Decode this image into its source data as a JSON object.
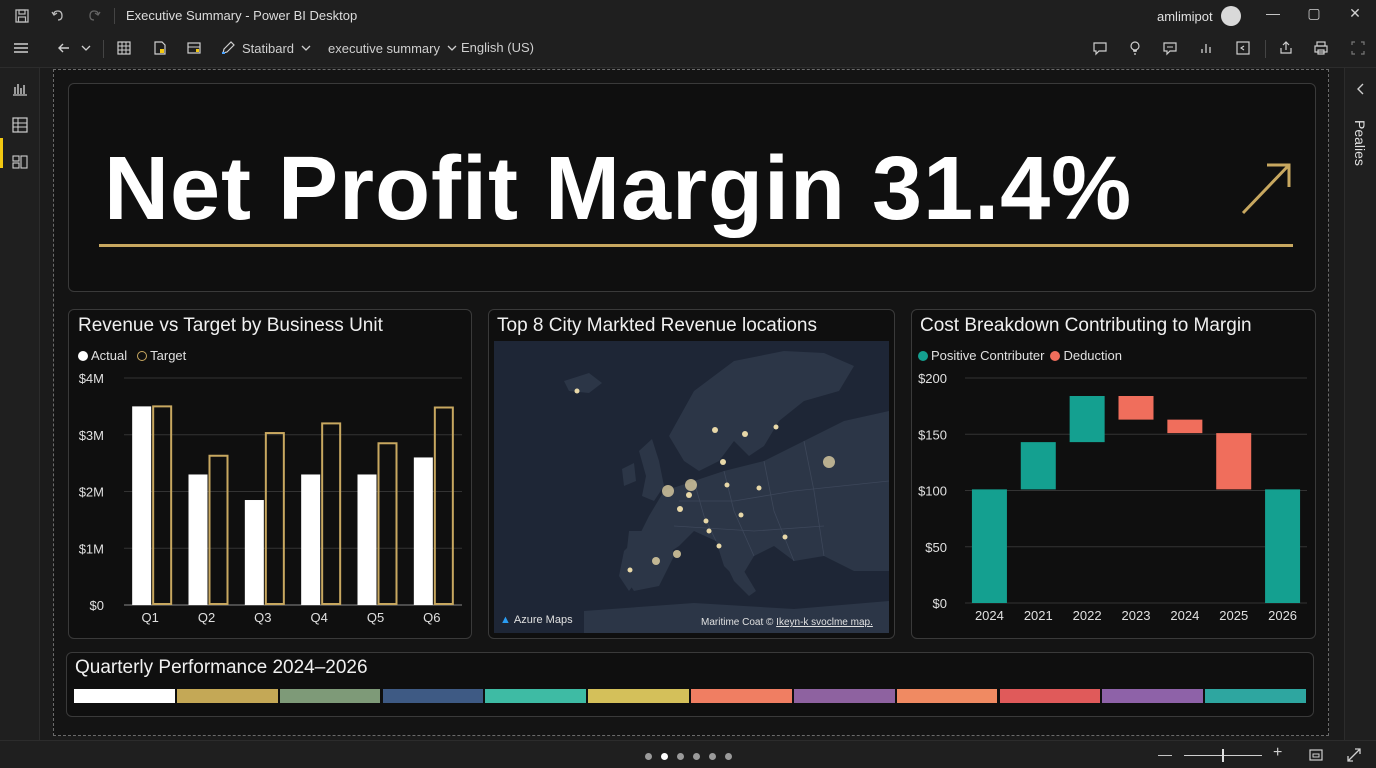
{
  "window": {
    "title": "Executive Summary - Power BI Desktop",
    "user": "amlimipot"
  },
  "toolbar": {
    "style_label": "Statibard",
    "page_label": "executive summary",
    "locale_label": "English (US)"
  },
  "right_pane": {
    "label": "Pealies"
  },
  "kpi": {
    "text": "Net Profit Margin 31.4%",
    "arrow_color": "#c8a860",
    "underline_color": "#c8a860"
  },
  "bar_chart": {
    "title": "Revenue vs Target by Business Unit",
    "legend": [
      "Actual",
      "Target"
    ],
    "chart_data": {
      "type": "bar",
      "categories": [
        "Q1",
        "Q2",
        "Q3",
        "Q4",
        "Q5",
        "Q6"
      ],
      "series": [
        {
          "name": "Actual",
          "values": [
            3.5,
            2.3,
            1.85,
            2.3,
            2.3,
            2.6
          ],
          "color": "#ffffff"
        },
        {
          "name": "Target",
          "values": [
            3.5,
            2.63,
            3.03,
            3.2,
            2.85,
            3.48
          ],
          "color": "#c8a860"
        }
      ],
      "ylim": [
        0,
        4
      ],
      "yticks": [
        "$0",
        "$1M",
        "$2M",
        "$3M",
        "$4M"
      ]
    }
  },
  "map": {
    "title": "Top 8 City Markted Revenue locations",
    "logo": "Azure Maps",
    "credit": "Maritime Coat ©",
    "credit_link": "Ikeyn-k svoclme map."
  },
  "waterfall": {
    "title": "Cost Breakdown Contributing to Margin",
    "legend": [
      "Positive Contributer",
      "Deduction"
    ],
    "chart_data": {
      "type": "bar",
      "categories": [
        "2024",
        "2021",
        "2022",
        "2023",
        "2024",
        "2025",
        "2026"
      ],
      "bars": [
        {
          "start": 0,
          "end": 101,
          "kind": "positive"
        },
        {
          "start": 101,
          "end": 143,
          "kind": "positive"
        },
        {
          "start": 143,
          "end": 184,
          "kind": "positive"
        },
        {
          "start": 184,
          "end": 163,
          "kind": "deduction"
        },
        {
          "start": 163,
          "end": 151,
          "kind": "deduction"
        },
        {
          "start": 151,
          "end": 101,
          "kind": "deduction"
        },
        {
          "start": 0,
          "end": 101,
          "kind": "positive"
        }
      ],
      "ylim": [
        0,
        200
      ],
      "yticks": [
        "$0",
        "$50",
        "$100",
        "$150",
        "$200"
      ],
      "colors": {
        "positive": "#14a090",
        "deduction": "#f06e5c"
      }
    }
  },
  "quarterly": {
    "title": "Quarterly Performance 2024–2026",
    "segment_colors": [
      "#ffffff",
      "#c4a856",
      "#7e9a78",
      "#3e5a84",
      "#3ebba4",
      "#d4c05a",
      "#f07e62",
      "#8e62a0",
      "#f08a62",
      "#e05a5a",
      "#8e62a8",
      "#2ea6a0"
    ]
  }
}
